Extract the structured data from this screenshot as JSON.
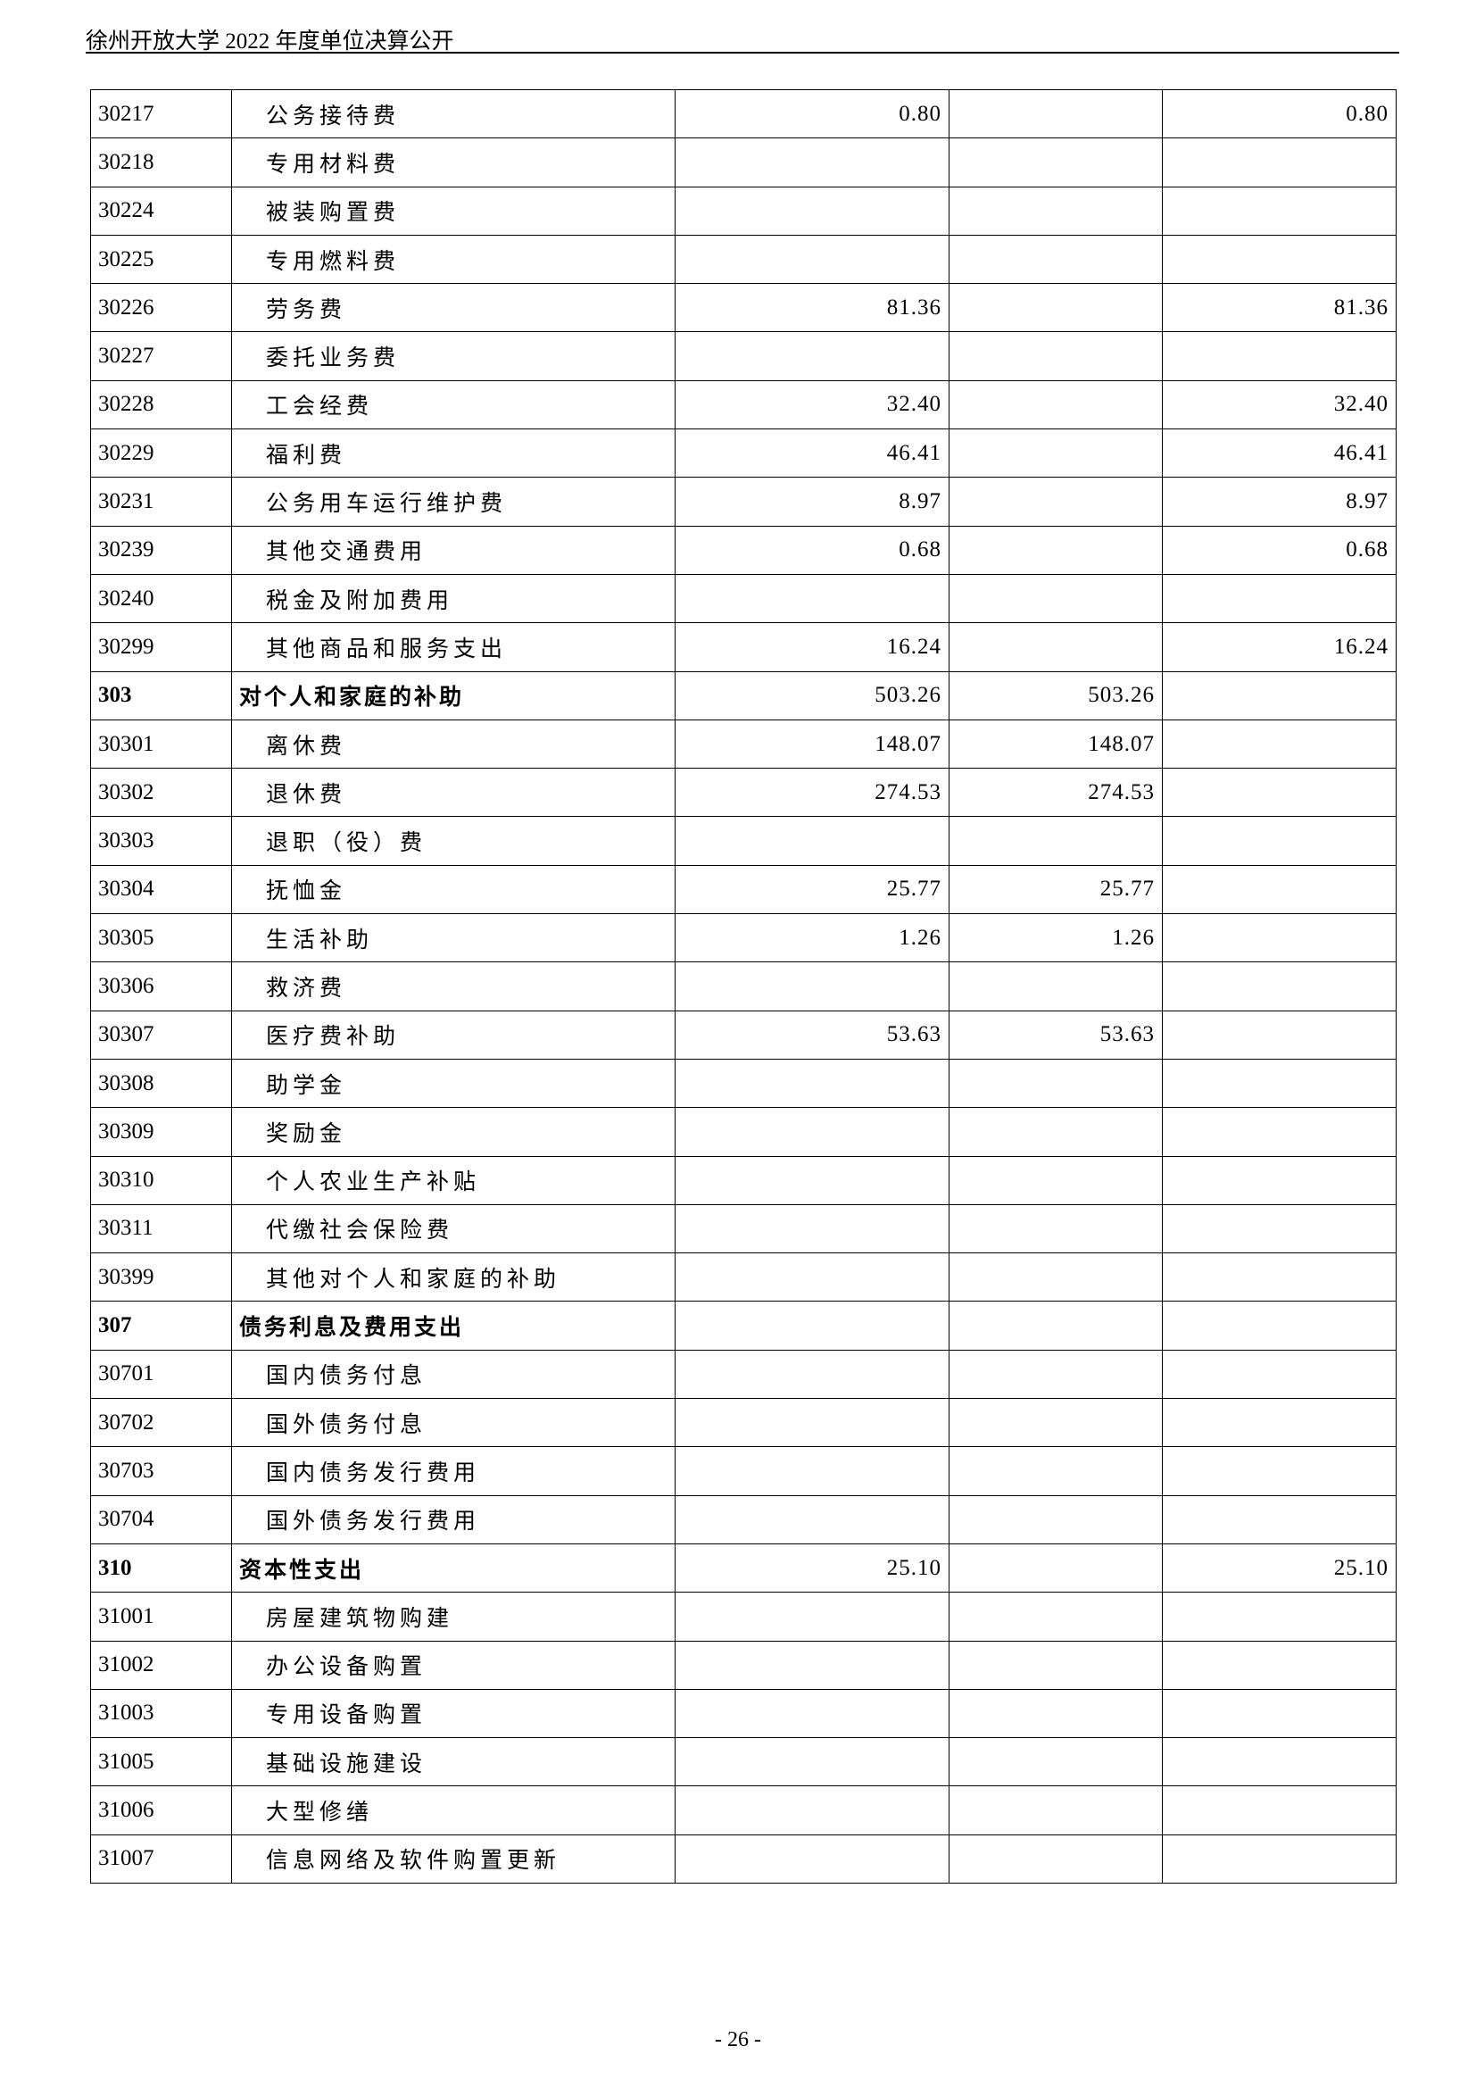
{
  "header": {
    "title": "徐州开放大学 2022 年度单位决算公开"
  },
  "rows": [
    {
      "code": "30217",
      "name": "公务接待费",
      "c1": "0.80",
      "c2": "",
      "c3": "0.80",
      "bold": false
    },
    {
      "code": "30218",
      "name": "专用材料费",
      "c1": "",
      "c2": "",
      "c3": "",
      "bold": false
    },
    {
      "code": "30224",
      "name": "被装购置费",
      "c1": "",
      "c2": "",
      "c3": "",
      "bold": false
    },
    {
      "code": "30225",
      "name": "专用燃料费",
      "c1": "",
      "c2": "",
      "c3": "",
      "bold": false
    },
    {
      "code": "30226",
      "name": "劳务费",
      "c1": "81.36",
      "c2": "",
      "c3": "81.36",
      "bold": false
    },
    {
      "code": "30227",
      "name": "委托业务费",
      "c1": "",
      "c2": "",
      "c3": "",
      "bold": false
    },
    {
      "code": "30228",
      "name": "工会经费",
      "c1": "32.40",
      "c2": "",
      "c3": "32.40",
      "bold": false
    },
    {
      "code": "30229",
      "name": "福利费",
      "c1": "46.41",
      "c2": "",
      "c3": "46.41",
      "bold": false
    },
    {
      "code": "30231",
      "name": "公务用车运行维护费",
      "c1": "8.97",
      "c2": "",
      "c3": "8.97",
      "bold": false
    },
    {
      "code": "30239",
      "name": "其他交通费用",
      "c1": "0.68",
      "c2": "",
      "c3": "0.68",
      "bold": false
    },
    {
      "code": "30240",
      "name": "税金及附加费用",
      "c1": "",
      "c2": "",
      "c3": "",
      "bold": false
    },
    {
      "code": "30299",
      "name": "其他商品和服务支出",
      "c1": "16.24",
      "c2": "",
      "c3": "16.24",
      "bold": false
    },
    {
      "code": "303",
      "name": "对个人和家庭的补助",
      "c1": "503.26",
      "c2": "503.26",
      "c3": "",
      "bold": true
    },
    {
      "code": "30301",
      "name": "离休费",
      "c1": "148.07",
      "c2": "148.07",
      "c3": "",
      "bold": false
    },
    {
      "code": "30302",
      "name": "退休费",
      "c1": "274.53",
      "c2": "274.53",
      "c3": "",
      "bold": false
    },
    {
      "code": "30303",
      "name": "退职（役）费",
      "c1": "",
      "c2": "",
      "c3": "",
      "bold": false
    },
    {
      "code": "30304",
      "name": "抚恤金",
      "c1": "25.77",
      "c2": "25.77",
      "c3": "",
      "bold": false
    },
    {
      "code": "30305",
      "name": "生活补助",
      "c1": "1.26",
      "c2": "1.26",
      "c3": "",
      "bold": false
    },
    {
      "code": "30306",
      "name": "救济费",
      "c1": "",
      "c2": "",
      "c3": "",
      "bold": false
    },
    {
      "code": "30307",
      "name": "医疗费补助",
      "c1": "53.63",
      "c2": "53.63",
      "c3": "",
      "bold": false
    },
    {
      "code": "30308",
      "name": "助学金",
      "c1": "",
      "c2": "",
      "c3": "",
      "bold": false
    },
    {
      "code": "30309",
      "name": "奖励金",
      "c1": "",
      "c2": "",
      "c3": "",
      "bold": false
    },
    {
      "code": "30310",
      "name": "个人农业生产补贴",
      "c1": "",
      "c2": "",
      "c3": "",
      "bold": false
    },
    {
      "code": "30311",
      "name": "代缴社会保险费",
      "c1": "",
      "c2": "",
      "c3": "",
      "bold": false
    },
    {
      "code": "30399",
      "name": "其他对个人和家庭的补助",
      "c1": "",
      "c2": "",
      "c3": "",
      "bold": false
    },
    {
      "code": "307",
      "name": "债务利息及费用支出",
      "c1": "",
      "c2": "",
      "c3": "",
      "bold": true
    },
    {
      "code": "30701",
      "name": "国内债务付息",
      "c1": "",
      "c2": "",
      "c3": "",
      "bold": false
    },
    {
      "code": "30702",
      "name": "国外债务付息",
      "c1": "",
      "c2": "",
      "c3": "",
      "bold": false
    },
    {
      "code": "30703",
      "name": "国内债务发行费用",
      "c1": "",
      "c2": "",
      "c3": "",
      "bold": false
    },
    {
      "code": "30704",
      "name": "国外债务发行费用",
      "c1": "",
      "c2": "",
      "c3": "",
      "bold": false
    },
    {
      "code": "310",
      "name": "资本性支出",
      "c1": "25.10",
      "c2": "",
      "c3": "25.10",
      "bold": true
    },
    {
      "code": "31001",
      "name": "房屋建筑物购建",
      "c1": "",
      "c2": "",
      "c3": "",
      "bold": false
    },
    {
      "code": "31002",
      "name": "办公设备购置",
      "c1": "",
      "c2": "",
      "c3": "",
      "bold": false
    },
    {
      "code": "31003",
      "name": "专用设备购置",
      "c1": "",
      "c2": "",
      "c3": "",
      "bold": false
    },
    {
      "code": "31005",
      "name": "基础设施建设",
      "c1": "",
      "c2": "",
      "c3": "",
      "bold": false
    },
    {
      "code": "31006",
      "name": "大型修缮",
      "c1": "",
      "c2": "",
      "c3": "",
      "bold": false
    },
    {
      "code": "31007",
      "name": "信息网络及软件购置更新",
      "c1": "",
      "c2": "",
      "c3": "",
      "bold": false
    }
  ],
  "footer": {
    "page_number": "- 26 -"
  }
}
